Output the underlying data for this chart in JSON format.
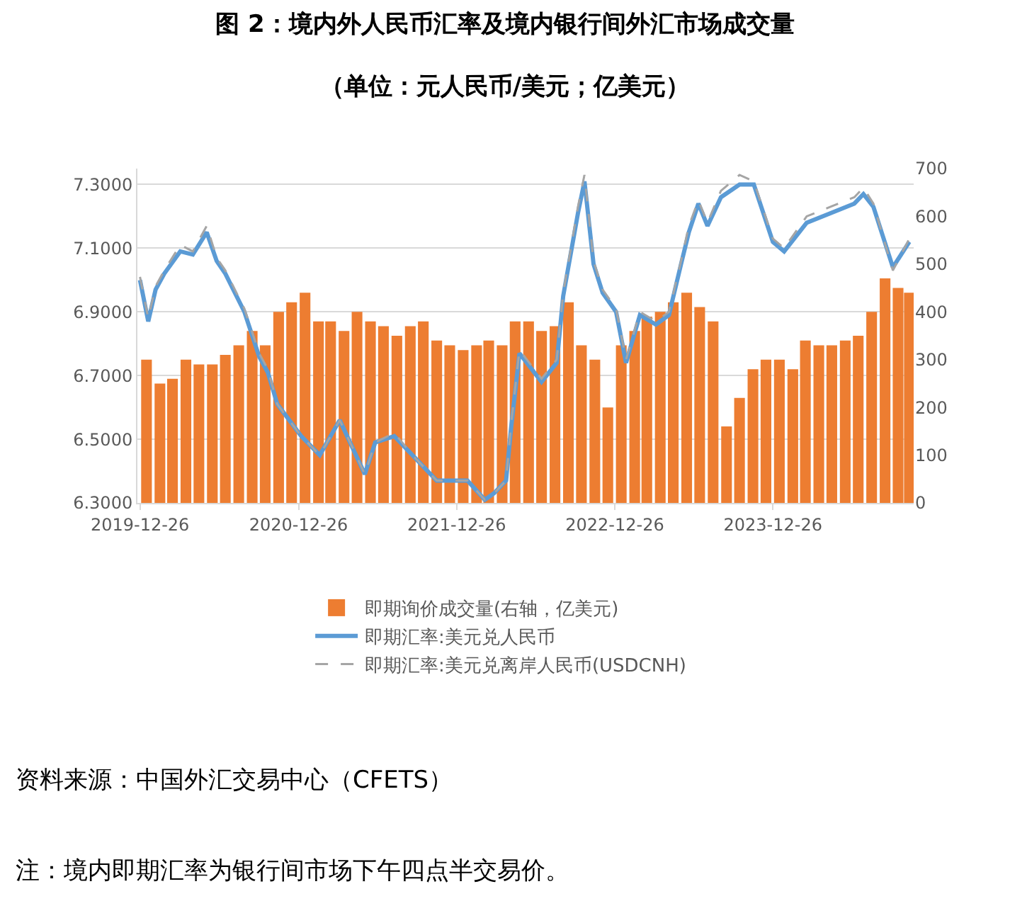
{
  "chart_data": {
    "type": "bar",
    "title": "图 2：境内外人民币汇率及境内银行间外汇市场成交量",
    "subtitle": "（单位：元人民币/美元；亿美元）",
    "annotations": [
      "资料来源：中国外汇交易中心（CFETS）",
      "注：境内即期汇率为银行间市场下午四点半交易价。"
    ],
    "xlim": [
      "2019-12-20",
      "2024-11-15"
    ],
    "xticks": [
      "2019-12-26",
      "2020-12-26",
      "2021-12-26",
      "2022-12-26",
      "2023-12-26"
    ],
    "ylim": [
      6.3,
      7.35
    ],
    "yticks": [
      {
        "value": 6.3,
        "label": "6.3000"
      },
      {
        "value": 6.5,
        "label": "6.5000"
      },
      {
        "value": 6.7,
        "label": "6.7000"
      },
      {
        "value": 6.9,
        "label": "6.9000"
      },
      {
        "value": 7.1,
        "label": "7.1000"
      },
      {
        "value": 7.3,
        "label": "7.3000"
      }
    ],
    "y2lim": [
      0,
      700
    ],
    "y2ticks": [
      0,
      100,
      200,
      300,
      400,
      500,
      600,
      700
    ],
    "grid": "y",
    "legend": "bottom",
    "series": [
      {
        "name": "即期询价成交量(右轴，亿美元)",
        "axis": "y2",
        "color": "#ed7d31",
        "x": [
          "2020-01-10",
          "2020-02-10",
          "2020-03-10",
          "2020-04-10",
          "2020-05-10",
          "2020-06-10",
          "2020-07-10",
          "2020-08-10",
          "2020-09-10",
          "2020-10-10",
          "2020-11-10",
          "2020-12-10",
          "2021-01-10",
          "2021-02-10",
          "2021-03-10",
          "2021-04-10",
          "2021-05-10",
          "2021-06-10",
          "2021-07-10",
          "2021-08-10",
          "2021-09-10",
          "2021-10-10",
          "2021-11-10",
          "2021-12-10",
          "2022-01-10",
          "2022-02-10",
          "2022-03-10",
          "2022-04-10",
          "2022-05-10",
          "2022-06-10",
          "2022-07-10",
          "2022-08-10",
          "2022-09-10",
          "2022-10-10",
          "2022-11-10",
          "2022-12-10",
          "2023-01-10",
          "2023-02-10",
          "2023-03-10",
          "2023-04-10",
          "2023-05-10",
          "2023-06-10",
          "2023-07-10",
          "2023-08-10",
          "2023-09-10",
          "2023-10-10",
          "2023-11-10",
          "2023-12-10",
          "2024-01-10",
          "2024-02-10",
          "2024-03-10",
          "2024-04-10",
          "2024-05-10",
          "2024-06-10",
          "2024-07-10",
          "2024-08-10",
          "2024-09-10",
          "2024-10-10",
          "2024-11-05"
        ],
        "values": [
          300,
          250,
          260,
          300,
          290,
          290,
          310,
          330,
          360,
          330,
          400,
          420,
          440,
          380,
          380,
          360,
          400,
          380,
          370,
          350,
          370,
          380,
          340,
          330,
          320,
          330,
          340,
          330,
          380,
          380,
          360,
          370,
          420,
          330,
          300,
          200,
          330,
          360,
          390,
          400,
          420,
          440,
          410,
          380,
          160,
          220,
          280,
          300,
          300,
          280,
          340,
          330,
          330,
          340,
          350,
          400,
          470,
          450,
          440
        ]
      },
      {
        "name": "即期汇率:美元兑人民币",
        "type": "line",
        "axis": "y",
        "color": "#5b9bd5",
        "line_style": "solid",
        "marker": "none",
        "x": [
          "2019-12-26",
          "2020-01-14",
          "2020-01-31",
          "2020-02-20",
          "2020-03-28",
          "2020-04-26",
          "2020-05-28",
          "2020-06-20",
          "2020-07-10",
          "2020-08-23",
          "2020-09-26",
          "2020-10-16",
          "2020-11-07",
          "2021-01-01",
          "2021-02-13",
          "2021-03-31",
          "2021-05-28",
          "2021-06-21",
          "2021-08-04",
          "2021-09-15",
          "2021-11-10",
          "2022-01-20",
          "2022-03-01",
          "2022-03-22",
          "2022-04-19",
          "2022-05-01",
          "2022-05-20",
          "2022-07-10",
          "2022-08-14",
          "2022-08-29",
          "2022-10-02",
          "2022-10-17",
          "2022-11-07",
          "2022-11-28",
          "2022-12-29",
          "2023-01-21",
          "2023-02-22",
          "2023-03-31",
          "2023-04-30",
          "2023-05-28",
          "2023-06-15",
          "2023-07-07",
          "2023-07-28",
          "2023-08-28",
          "2023-10-10",
          "2023-11-12",
          "2023-12-26",
          "2024-01-21",
          "2024-03-13",
          "2024-05-07",
          "2024-07-01",
          "2024-07-22",
          "2024-08-14",
          "2024-09-28",
          "2024-11-05"
        ],
        "values": [
          7.0,
          6.87,
          6.97,
          7.02,
          7.09,
          7.08,
          7.15,
          7.06,
          7.02,
          6.9,
          6.76,
          6.71,
          6.61,
          6.51,
          6.45,
          6.56,
          6.39,
          6.49,
          6.51,
          6.45,
          6.37,
          6.37,
          6.31,
          6.33,
          6.37,
          6.54,
          6.77,
          6.68,
          6.74,
          6.95,
          7.21,
          7.31,
          7.05,
          6.96,
          6.9,
          6.74,
          6.89,
          6.86,
          6.89,
          7.05,
          7.15,
          7.24,
          7.17,
          7.26,
          7.3,
          7.3,
          7.12,
          7.09,
          7.18,
          7.21,
          7.24,
          7.27,
          7.23,
          7.04,
          7.12
        ]
      },
      {
        "name": "即期汇率:美元兑离岸人民币(USDCNH)",
        "type": "line",
        "axis": "y",
        "color": "#a5a5a5",
        "line_style": "dashed",
        "marker": "none",
        "x": [
          "2019-12-26",
          "2020-01-14",
          "2020-01-31",
          "2020-02-20",
          "2020-03-28",
          "2020-04-26",
          "2020-05-28",
          "2020-06-20",
          "2020-07-10",
          "2020-08-23",
          "2020-09-26",
          "2020-10-16",
          "2020-11-07",
          "2021-01-01",
          "2021-02-13",
          "2021-03-31",
          "2021-05-28",
          "2021-06-21",
          "2021-08-04",
          "2021-09-15",
          "2021-11-10",
          "2022-01-20",
          "2022-03-01",
          "2022-03-22",
          "2022-04-19",
          "2022-05-01",
          "2022-05-20",
          "2022-07-10",
          "2022-08-14",
          "2022-08-29",
          "2022-10-02",
          "2022-10-17",
          "2022-11-07",
          "2022-11-28",
          "2022-12-29",
          "2023-01-21",
          "2023-02-22",
          "2023-03-31",
          "2023-04-30",
          "2023-05-28",
          "2023-06-15",
          "2023-07-07",
          "2023-07-28",
          "2023-08-28",
          "2023-10-10",
          "2023-11-12",
          "2023-12-26",
          "2024-01-21",
          "2024-03-13",
          "2024-05-07",
          "2024-07-01",
          "2024-07-22",
          "2024-08-14",
          "2024-09-28",
          "2024-11-05"
        ],
        "values": [
          7.01,
          6.88,
          6.98,
          7.03,
          7.11,
          7.09,
          7.17,
          7.07,
          7.03,
          6.91,
          6.77,
          6.72,
          6.61,
          6.51,
          6.45,
          6.56,
          6.39,
          6.49,
          6.52,
          6.45,
          6.37,
          6.37,
          6.31,
          6.33,
          6.37,
          6.55,
          6.78,
          6.69,
          6.75,
          6.96,
          7.23,
          7.33,
          7.06,
          6.97,
          6.91,
          6.75,
          6.9,
          6.87,
          6.9,
          7.06,
          7.17,
          7.25,
          7.18,
          7.28,
          7.33,
          7.31,
          7.13,
          7.1,
          7.2,
          7.23,
          7.26,
          7.29,
          7.24,
          7.03,
          7.13
        ]
      }
    ]
  }
}
